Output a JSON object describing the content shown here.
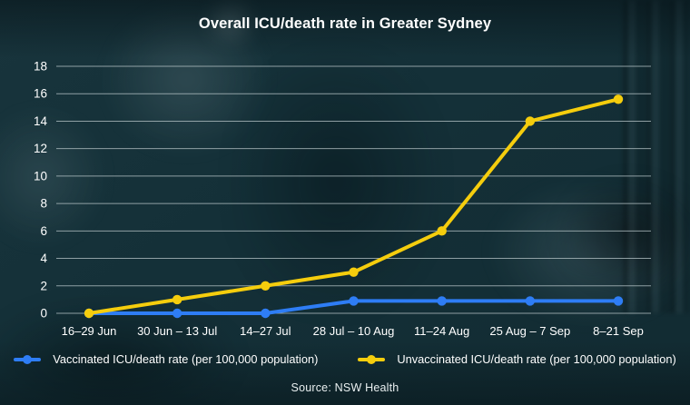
{
  "chart_data": {
    "type": "line",
    "title": "Overall ICU/death rate in Greater Sydney",
    "source": "Source: NSW Health",
    "categories": [
      "16–29 Jun",
      "30 Jun – 13 Jul",
      "14–27 Jul",
      "28 Jul – 10 Aug",
      "11–24 Aug",
      "25 Aug – 7 Sep",
      "8–21 Sep"
    ],
    "series": [
      {
        "key": "vaccinated",
        "name": "Vaccinated ICU/death rate (per 100,000 population)",
        "color": "#2e7df5",
        "values": [
          0,
          0,
          0,
          0.9,
          0.9,
          0.9,
          0.9
        ]
      },
      {
        "key": "unvaccinated",
        "name": "Unvaccinated ICU/death rate (per 100,000 population)",
        "color": "#f5cd0d",
        "values": [
          0,
          1,
          2,
          3,
          6,
          14,
          15.6
        ]
      }
    ],
    "xlabel": "",
    "ylabel": "",
    "ylim": [
      0,
      18
    ],
    "yticks": [
      0,
      2,
      4,
      6,
      8,
      10,
      12,
      14,
      16,
      18
    ],
    "grid": true,
    "legend_position": "bottom",
    "text_color": "#ffffff",
    "gridline_color": "#aebcbf",
    "background_color": "#16323a"
  }
}
